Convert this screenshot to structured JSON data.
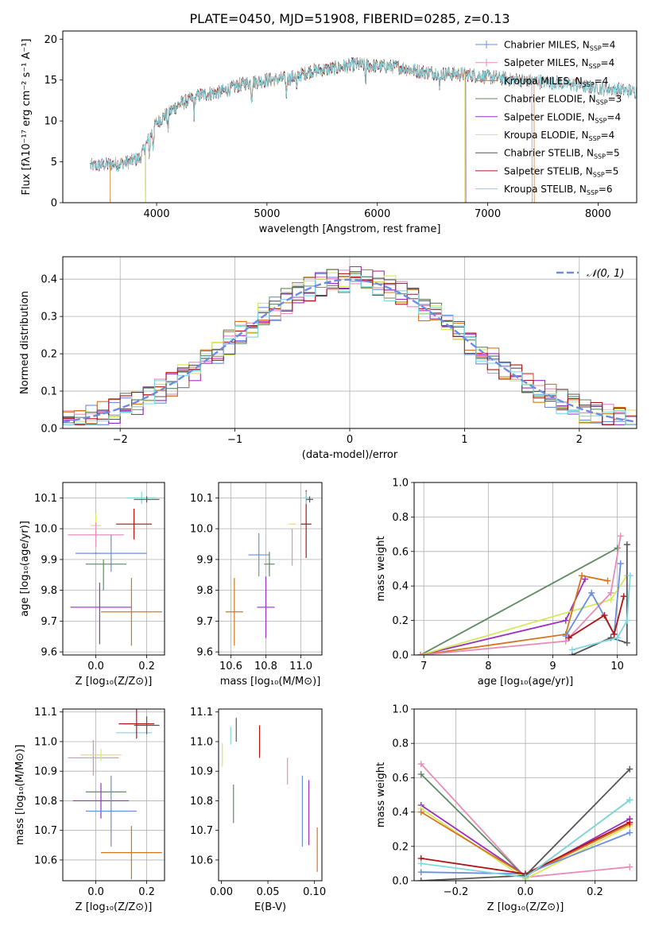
{
  "figure": {
    "title": "PLATE=0450, MJD=51908, FIBERID=0285, z=0.13"
  },
  "colors": {
    "s0": "#6a8de0",
    "s1": "#e88cb9",
    "s2": "#d4761f",
    "s3": "#5f8a62",
    "s4": "#9a2fc0",
    "s5": "#d6e85c",
    "s6": "#555555",
    "s7": "#b01414",
    "s8": "#7fd8e0"
  },
  "chart_data": [
    {
      "type": "line",
      "name": "spectrum",
      "xlabel": "wavelength [Angstrom, rest frame]",
      "ylabel": "Flux [fλ10⁻¹⁷ erg cm⁻² s⁻¹ A⁻¹]",
      "xlim": [
        3150,
        8350
      ],
      "ylim": [
        0,
        21
      ],
      "xticks": [
        4000,
        5000,
        6000,
        7000,
        8000
      ],
      "yticks": [
        0,
        5,
        10,
        15,
        20
      ],
      "legend": "upper-right",
      "series": [
        {
          "name": "Chabrier MILES, N",
          "sub": "SSP",
          "tail": "=4",
          "color": "s0",
          "start": 3400,
          "end": 7400
        },
        {
          "name": "Salpeter MILES, N",
          "sub": "SSP",
          "tail": "=4",
          "color": "s1",
          "start": 3400,
          "end": 7400
        },
        {
          "name": "Kroupa MILES, N",
          "sub": "SSP",
          "tail": "=4",
          "color": "s2",
          "start": 3580,
          "end": 7420
        },
        {
          "name": "Chabrier ELODIE, N",
          "sub": "SSP",
          "tail": "=3",
          "color": "s3",
          "start": 3900,
          "end": 6800
        },
        {
          "name": "Salpeter ELODIE, N",
          "sub": "SSP",
          "tail": "=4",
          "color": "s4",
          "start": 3900,
          "end": 6800
        },
        {
          "name": "Kroupa ELODIE, N",
          "sub": "SSP",
          "tail": "=4",
          "color": "s5",
          "start": 3900,
          "end": 6790
        },
        {
          "name": "Chabrier STELIB, N",
          "sub": "SSP",
          "tail": "=5",
          "color": "s6",
          "start": 3400,
          "end": 8450
        },
        {
          "name": "Salpeter STELIB, N",
          "sub": "SSP",
          "tail": "=5",
          "color": "s7",
          "start": 3400,
          "end": 8450
        },
        {
          "name": "Kroupa STELIB, N",
          "sub": "SSP",
          "tail": "=6",
          "color": "s8",
          "start": 3400,
          "end": 8450
        }
      ],
      "continuum": [
        [
          3400,
          4.5
        ],
        [
          3700,
          4.8
        ],
        [
          3850,
          5.5
        ],
        [
          4000,
          9.8
        ],
        [
          4200,
          12.0
        ],
        [
          4400,
          13.2
        ],
        [
          4600,
          13.6
        ],
        [
          4800,
          14.6
        ],
        [
          5000,
          15.0
        ],
        [
          5200,
          15.2
        ],
        [
          5400,
          16.1
        ],
        [
          5600,
          16.4
        ],
        [
          5800,
          16.9
        ],
        [
          6000,
          16.7
        ],
        [
          6200,
          16.6
        ],
        [
          6400,
          16.0
        ],
        [
          6600,
          15.8
        ],
        [
          6800,
          15.7
        ],
        [
          7000,
          15.4
        ],
        [
          7200,
          15.1
        ],
        [
          7400,
          14.9
        ],
        [
          7600,
          14.7
        ],
        [
          7800,
          14.4
        ],
        [
          8000,
          14.0
        ],
        [
          8200,
          13.8
        ],
        [
          8400,
          13.5
        ]
      ]
    },
    {
      "type": "histogram",
      "name": "residuals",
      "xlabel": "(data-model)/error",
      "ylabel": "Normed distribution",
      "xlim": [
        -2.5,
        2.5
      ],
      "ylim": [
        0,
        0.46
      ],
      "xticks": [
        -2,
        -1,
        0,
        1,
        2
      ],
      "yticks": [
        0.0,
        0.1,
        0.2,
        0.3,
        0.4
      ],
      "reference_curve": {
        "label": "𝒩(0, 1)",
        "mean": 0,
        "sigma": 1,
        "color": "#6a8de0"
      }
    },
    {
      "type": "scatter",
      "name": "Z-age",
      "xlabel": "Z [log₁₀(Z/Z⊙)]",
      "ylabel": "age  [log₁₀(age/yr)]",
      "xlim": [
        -0.13,
        0.27
      ],
      "ylim": [
        9.59,
        10.15
      ],
      "xticks": [
        0.0,
        0.2
      ],
      "yticks": [
        9.6,
        9.7,
        9.8,
        9.9,
        10.0,
        10.1
      ],
      "points": [
        {
          "x": 0.0,
          "y": 10.01,
          "xerr": 0.02,
          "yerr": 0.04,
          "color": "s5"
        },
        {
          "x": 0.0,
          "y": 9.98,
          "xerr": 0.11,
          "yerr": 0.04,
          "color": "s1"
        },
        {
          "x": 0.0,
          "y": 9.92,
          "xerr": 0.0,
          "yerr": 0.0,
          "color": "s0"
        },
        {
          "x": 0.06,
          "y": 9.92,
          "xerr": 0.14,
          "yerr": 0.06,
          "color": "s0"
        },
        {
          "x": 0.04,
          "y": 9.885,
          "xerr": 0.08,
          "yerr": 0.0,
          "color": "s3"
        },
        {
          "x": 0.03,
          "y": 9.85,
          "xerr": 0.0,
          "yerr": 0.05,
          "color": "s3"
        },
        {
          "x": 0.02,
          "y": 9.745,
          "xerr": 0.12,
          "yerr": 0.0,
          "color": "s4"
        },
        {
          "x": 0.015,
          "y": 9.725,
          "xerr": 0.0,
          "yerr": 0.1,
          "color": "s4"
        },
        {
          "x": 0.14,
          "y": 9.73,
          "xerr": 0.12,
          "yerr": 0.11,
          "color": "s2"
        },
        {
          "x": 0.15,
          "y": 10.015,
          "xerr": 0.07,
          "yerr": 0.05,
          "color": "s7"
        },
        {
          "x": 0.18,
          "y": 10.1,
          "xerr": 0.06,
          "yerr": 0.02,
          "color": "s8"
        },
        {
          "x": 0.2,
          "y": 10.095,
          "xerr": 0.05,
          "yerr": 0.01,
          "color": "s6"
        }
      ]
    },
    {
      "type": "scatter",
      "name": "mass-age",
      "xlabel": "mass [log₁₀(M/M⊙)]",
      "ylabel": "",
      "xlim": [
        10.53,
        11.12
      ],
      "ylim": [
        9.59,
        10.15
      ],
      "xticks": [
        10.6,
        10.8,
        11.0
      ],
      "yticks": [
        9.6,
        9.7,
        9.8,
        9.9,
        10.0,
        10.1
      ],
      "points": [
        {
          "x": 10.62,
          "y": 9.73,
          "xerr": 0.05,
          "yerr": 0.11,
          "color": "s2"
        },
        {
          "x": 10.8,
          "y": 9.745,
          "xerr": 0.05,
          "yerr": 0.1,
          "color": "s4"
        },
        {
          "x": 10.76,
          "y": 9.915,
          "xerr": 0.06,
          "yerr": 0.07,
          "color": "s0"
        },
        {
          "x": 10.82,
          "y": 9.885,
          "xerr": 0.03,
          "yerr": 0.04,
          "color": "s3"
        },
        {
          "x": 10.95,
          "y": 10.015,
          "xerr": 0.02,
          "yerr": 0.0,
          "color": "s5"
        },
        {
          "x": 10.95,
          "y": 9.94,
          "xerr": 0.0,
          "yerr": 0.06,
          "color": "s1"
        },
        {
          "x": 11.03,
          "y": 10.015,
          "xerr": 0.03,
          "yerr": 0.11,
          "color": "s7"
        },
        {
          "x": 11.03,
          "y": 10.1,
          "xerr": 0.02,
          "yerr": 0.02,
          "color": "s8"
        },
        {
          "x": 11.05,
          "y": 10.095,
          "xerr": 0.02,
          "yerr": 0.01,
          "color": "s6"
        }
      ]
    },
    {
      "type": "line",
      "name": "age-weight",
      "xlabel": "age  [log₁₀(age/yr)]",
      "ylabel": "mass weight",
      "xlim": [
        6.85,
        10.3
      ],
      "ylim": [
        0,
        1
      ],
      "xticks": [
        7,
        8,
        9,
        10
      ],
      "yticks": [
        0.0,
        0.2,
        0.4,
        0.6,
        0.8,
        1.0
      ],
      "series": [
        {
          "color": "s3",
          "points": [
            [
              6.95,
              0.0
            ],
            [
              10.0,
              0.62
            ]
          ]
        },
        {
          "color": "s4",
          "points": [
            [
              6.95,
              0.0
            ],
            [
              9.2,
              0.2
            ],
            [
              9.5,
              0.44
            ]
          ]
        },
        {
          "color": "s5",
          "points": [
            [
              6.95,
              0.0
            ],
            [
              9.9,
              0.32
            ],
            [
              10.15,
              0.46
            ]
          ]
        },
        {
          "color": "s2",
          "points": [
            [
              6.95,
              0.0
            ],
            [
              9.2,
              0.12
            ],
            [
              9.45,
              0.46
            ],
            [
              9.85,
              0.43
            ]
          ]
        },
        {
          "color": "s1",
          "points": [
            [
              6.95,
              0.0
            ],
            [
              9.2,
              0.08
            ],
            [
              9.9,
              0.36
            ],
            [
              10.05,
              0.69
            ]
          ]
        },
        {
          "color": "s0",
          "points": [
            [
              9.2,
              0.11
            ],
            [
              9.6,
              0.36
            ],
            [
              9.95,
              0.12
            ],
            [
              10.05,
              0.53
            ]
          ]
        },
        {
          "color": "s7",
          "points": [
            [
              9.25,
              0.1
            ],
            [
              9.8,
              0.23
            ],
            [
              9.95,
              0.12
            ],
            [
              10.1,
              0.34
            ]
          ]
        },
        {
          "color": "s6",
          "points": [
            [
              9.3,
              0.0
            ],
            [
              9.9,
              0.1
            ],
            [
              10.15,
              0.07
            ],
            [
              10.15,
              0.64
            ]
          ]
        },
        {
          "color": "s8",
          "points": [
            [
              9.3,
              0.03
            ],
            [
              10.0,
              0.1
            ],
            [
              10.15,
              0.2
            ],
            [
              10.2,
              0.46
            ]
          ]
        }
      ]
    },
    {
      "type": "scatter",
      "name": "Z-mass",
      "xlabel": "Z [log₁₀(Z/Z⊙)]",
      "ylabel": "mass [log₁₀(M/M⊙)]",
      "xlim": [
        -0.13,
        0.27
      ],
      "ylim": [
        10.53,
        11.11
      ],
      "xticks": [
        0.0,
        0.2
      ],
      "yticks": [
        10.6,
        10.7,
        10.8,
        10.9,
        11.0,
        11.1
      ],
      "points": [
        {
          "x": -0.01,
          "y": 10.945,
          "xerr": 0.1,
          "yerr": 0.06,
          "color": "s1"
        },
        {
          "x": 0.02,
          "y": 10.955,
          "xerr": 0.08,
          "yerr": 0.02,
          "color": "s5"
        },
        {
          "x": 0.04,
          "y": 10.83,
          "xerr": 0.08,
          "yerr": 0.0,
          "color": "s3"
        },
        {
          "x": 0.02,
          "y": 10.8,
          "xerr": 0.11,
          "yerr": 0.06,
          "color": "s4"
        },
        {
          "x": 0.06,
          "y": 10.765,
          "xerr": 0.1,
          "yerr": 0.12,
          "color": "s0"
        },
        {
          "x": 0.14,
          "y": 10.625,
          "xerr": 0.12,
          "yerr": 0.09,
          "color": "s2"
        },
        {
          "x": 0.15,
          "y": 11.03,
          "xerr": 0.07,
          "yerr": 0.0,
          "color": "s8"
        },
        {
          "x": 0.16,
          "y": 11.06,
          "xerr": 0.07,
          "yerr": 0.05,
          "color": "s7"
        },
        {
          "x": 0.2,
          "y": 11.055,
          "xerr": 0.05,
          "yerr": 0.03,
          "color": "s6"
        }
      ]
    },
    {
      "type": "scatter",
      "name": "ebv-mass",
      "xlabel": "E(B-V)",
      "ylabel": "",
      "xlim": [
        -0.003,
        0.108
      ],
      "ylim": [
        10.53,
        11.11
      ],
      "xticks": [
        0.0,
        0.05,
        0.1
      ],
      "yticks": [
        10.6,
        10.7,
        10.8,
        10.9,
        11.0,
        11.1
      ],
      "points": [
        {
          "x": 0.001,
          "y": 10.955,
          "xerr": 0.0,
          "yerr": 0.04,
          "color": "s5"
        },
        {
          "x": 0.01,
          "y": 11.02,
          "xerr": 0.0,
          "yerr": 0.03,
          "color": "s8"
        },
        {
          "x": 0.016,
          "y": 11.04,
          "xerr": 0.0,
          "yerr": 0.04,
          "color": "s6"
        },
        {
          "x": 0.013,
          "y": 10.79,
          "xerr": 0.0,
          "yerr": 0.065,
          "color": "s3"
        },
        {
          "x": 0.041,
          "y": 11.0,
          "xerr": 0.0,
          "yerr": 0.055,
          "color": "s7"
        },
        {
          "x": 0.071,
          "y": 10.9,
          "xerr": 0.0,
          "yerr": 0.045,
          "color": "s1"
        },
        {
          "x": 0.087,
          "y": 10.765,
          "xerr": 0.0,
          "yerr": 0.12,
          "color": "s0"
        },
        {
          "x": 0.094,
          "y": 10.76,
          "xerr": 0.0,
          "yerr": 0.11,
          "color": "s4"
        },
        {
          "x": 0.103,
          "y": 10.635,
          "xerr": 0.0,
          "yerr": 0.075,
          "color": "s2"
        }
      ]
    },
    {
      "type": "line",
      "name": "Z-weight",
      "xlabel": "Z [log₁₀(Z/Z⊙)]",
      "ylabel": "mass weight",
      "xlim": [
        -0.32,
        0.32
      ],
      "ylim": [
        0,
        1
      ],
      "xticks": [
        -0.2,
        0.0,
        0.2
      ],
      "yticks": [
        0.0,
        0.2,
        0.4,
        0.6,
        0.8,
        1.0
      ],
      "series": [
        {
          "color": "s1",
          "points": [
            [
              -0.3,
              0.68
            ],
            [
              0.0,
              0.02
            ],
            [
              0.3,
              0.08
            ]
          ]
        },
        {
          "color": "s3",
          "points": [
            [
              -0.3,
              0.62
            ],
            [
              0.0,
              0.02
            ],
            [
              0.3,
              0.47
            ]
          ]
        },
        {
          "color": "s4",
          "points": [
            [
              -0.3,
              0.44
            ],
            [
              0.0,
              0.03
            ],
            [
              0.3,
              0.36
            ]
          ]
        },
        {
          "color": "s5",
          "points": [
            [
              -0.3,
              0.42
            ],
            [
              0.0,
              0.01
            ],
            [
              0.3,
              0.32
            ]
          ]
        },
        {
          "color": "s2",
          "points": [
            [
              -0.3,
              0.4
            ],
            [
              0.0,
              0.03
            ],
            [
              0.3,
              0.33
            ]
          ]
        },
        {
          "color": "s0",
          "points": [
            [
              -0.3,
              0.05
            ],
            [
              0.0,
              0.04
            ],
            [
              0.3,
              0.28
            ]
          ]
        },
        {
          "color": "s7",
          "points": [
            [
              -0.3,
              0.13
            ],
            [
              0.0,
              0.04
            ],
            [
              0.3,
              0.34
            ]
          ]
        },
        {
          "color": "s6",
          "points": [
            [
              -0.3,
              0.0
            ],
            [
              0.0,
              0.03
            ],
            [
              0.3,
              0.65
            ]
          ]
        },
        {
          "color": "s8",
          "points": [
            [
              -0.3,
              0.1
            ],
            [
              0.0,
              0.02
            ],
            [
              0.3,
              0.47
            ]
          ]
        }
      ]
    }
  ]
}
